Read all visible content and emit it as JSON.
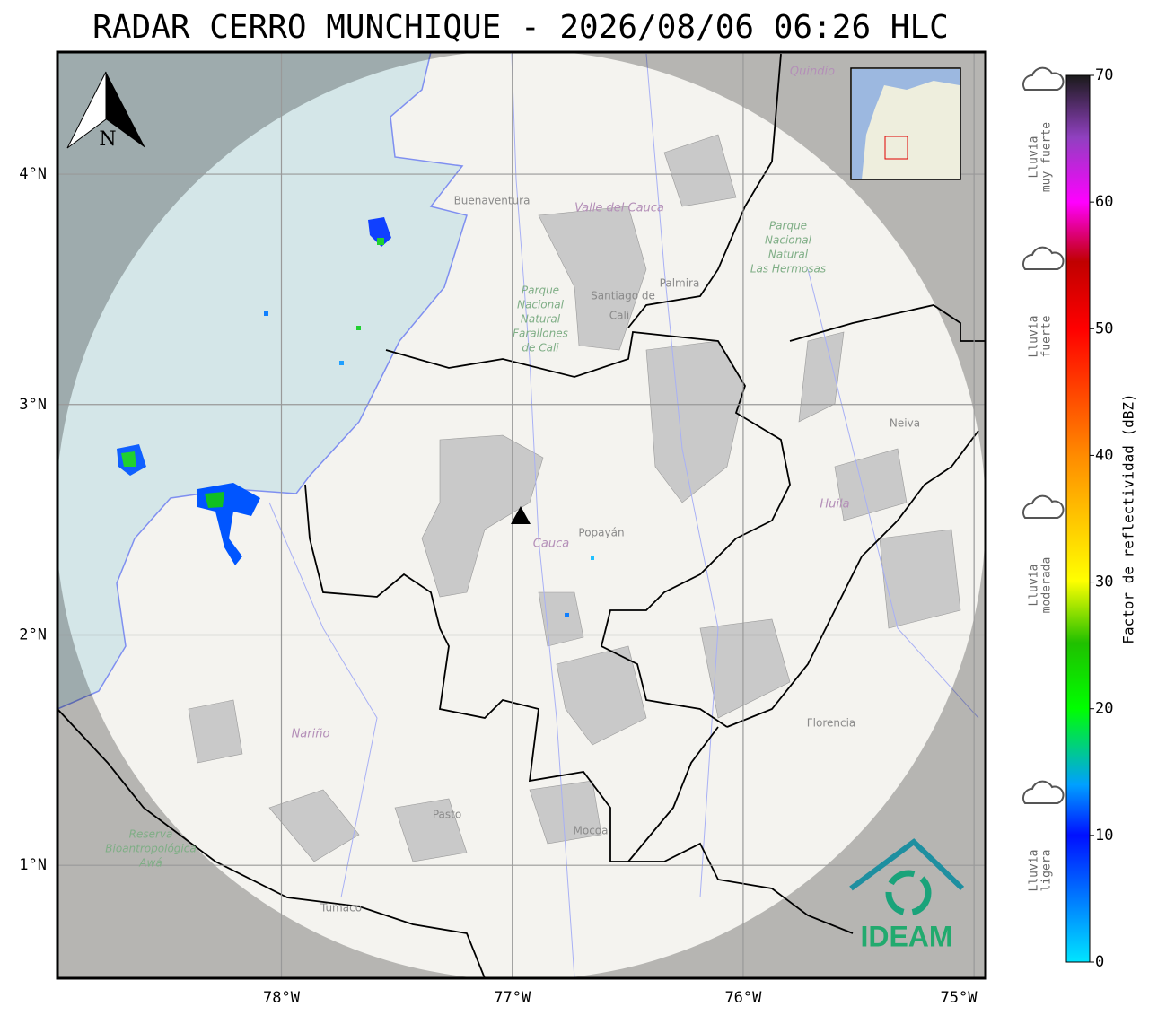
{
  "title": "RADAR CERRO MUNCHIQUE - 2026/08/06 06:26 HLC",
  "map": {
    "xlim": [
      -78.97,
      -74.95
    ],
    "ylim": [
      0.51,
      4.53
    ],
    "xticks": [
      {
        "value": -78,
        "label": "78°W"
      },
      {
        "value": -77,
        "label": "77°W"
      },
      {
        "value": -76,
        "label": "76°W"
      },
      {
        "value": -75,
        "label": "75°W"
      }
    ],
    "yticks": [
      {
        "value": 1,
        "label": "1°N"
      },
      {
        "value": 2,
        "label": "2°N"
      },
      {
        "value": 3,
        "label": "3°N"
      },
      {
        "value": 4,
        "label": "4°N"
      }
    ],
    "north": "N",
    "places": [
      "Buenaventura",
      "Valle del Cauca",
      "Santiago de",
      "Cali",
      "Palmira",
      "Quindío",
      "Popayán",
      "Cauca",
      "Huila",
      "Neiva",
      "Nariño",
      "Pasto",
      "Mocoa",
      "Florencia",
      "Tumaco"
    ],
    "parks": [
      [
        "Parque",
        "Nacional",
        "Natural",
        "Farallones",
        "de Cali"
      ],
      [
        "Parque",
        "Nacional",
        "Natural",
        "Las Hermosas"
      ],
      [
        "Reserva",
        "Bioantropológica",
        "Awá"
      ]
    ],
    "logo": "IDEAM"
  },
  "colorbar": {
    "label": "Factor de reflectividad (dBZ)",
    "lim": [
      0,
      70
    ],
    "ticks": [
      0,
      10,
      20,
      30,
      40,
      50,
      60,
      70
    ],
    "categories": [
      [
        "Lluvia",
        "muy fuerte"
      ],
      [
        "Lluvia",
        "fuerte"
      ],
      [
        "Lluvia",
        "moderada"
      ],
      [
        "Lluvia",
        "ligera"
      ]
    ]
  }
}
